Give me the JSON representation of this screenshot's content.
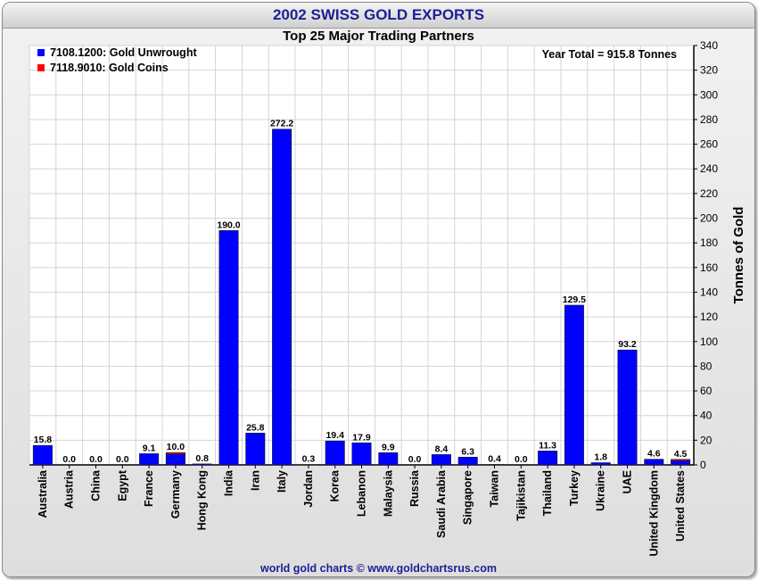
{
  "header": {
    "title": "2002 SWISS GOLD EXPORTS",
    "subtitle": "Top 25 Major Trading Partners",
    "footer": "world gold charts © www.goldchartsrus.com"
  },
  "chart_data": {
    "type": "bar",
    "stacked": true,
    "categories": [
      "Australia",
      "Austria",
      "China",
      "Egypt",
      "France",
      "Germany",
      "Hong Kong",
      "India",
      "Iran",
      "Italy",
      "Jordan",
      "Korea",
      "Lebanon",
      "Malaysia",
      "Russia",
      "Saudi Arabia",
      "Singapore",
      "Taiwan",
      "Tajikistan",
      "Thailand",
      "Turkey",
      "Ukraine",
      "UAE",
      "United Kingdom",
      "United States"
    ],
    "series": [
      {
        "name": "7108.1200: Gold Unwrought",
        "color": "#0000ff",
        "values": [
          15.8,
          0.0,
          0.0,
          0.0,
          9.1,
          8.8,
          0.8,
          190.0,
          25.8,
          272.2,
          0.3,
          19.4,
          17.9,
          9.9,
          0.0,
          8.4,
          6.3,
          0.4,
          0.0,
          11.3,
          129.5,
          1.8,
          93.2,
          4.6,
          3.5
        ]
      },
      {
        "name": "7118.9010: Gold Coins",
        "color": "#ff0000",
        "values": [
          0.0,
          0.0,
          0.0,
          0.0,
          0.0,
          1.2,
          0.0,
          0.0,
          0.0,
          0.0,
          0.0,
          0.0,
          0.0,
          0.0,
          0.0,
          0.0,
          0.0,
          0.0,
          0.0,
          0.0,
          0.0,
          0.0,
          0.0,
          0.0,
          1.0
        ]
      }
    ],
    "data_labels": [
      "15.8",
      "0.0",
      "0.0",
      "0.0",
      "9.1",
      "10.0",
      "0.8",
      "190.0",
      "25.8",
      "272.2",
      "0.3",
      "19.4",
      "17.9",
      "9.9",
      "0.0",
      "8.4",
      "6.3",
      "0.4",
      "0.0",
      "11.3",
      "129.5",
      "1.8",
      "93.2",
      "4.6",
      "4.5"
    ],
    "annotation": "Year Total = 915.8 Tonnes",
    "ylabel": "Tonnes of Gold",
    "ylim": [
      0,
      340
    ],
    "yticks": [
      0,
      20,
      40,
      60,
      80,
      100,
      120,
      140,
      160,
      180,
      200,
      220,
      240,
      260,
      280,
      300,
      320,
      340
    ],
    "y_axis_side": "right",
    "grid": true,
    "legend_position": "top-left"
  }
}
